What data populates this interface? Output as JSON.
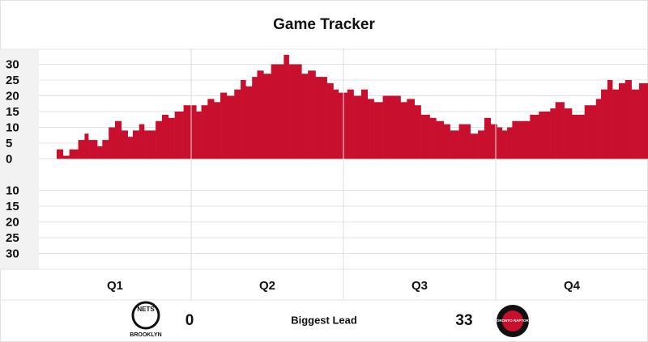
{
  "chart_data": {
    "type": "step",
    "title": "Game Tracker",
    "x": [
      1.4,
      1.9,
      2.4,
      3.1,
      3.6,
      3.9,
      4.6,
      5.0,
      5.5,
      6.0,
      6.5,
      7.0,
      7.4,
      7.9,
      8.3,
      9.2,
      9.7,
      10.2,
      10.7,
      11.4,
      12.4,
      12.8,
      13.3,
      13.8,
      14.3,
      14.8,
      15.4,
      15.9,
      16.3,
      16.8,
      17.2,
      17.7,
      18.3,
      19.3,
      19.7,
      20.7,
      21.2,
      21.8,
      22.7,
      23.2,
      23.6,
      24.3,
      24.8,
      25.4,
      25.9,
      26.4,
      27.1,
      28.5,
      29.0,
      29.6,
      30.1,
      30.8,
      31.3,
      31.9,
      32.4,
      33.1,
      34.0,
      34.6,
      35.1,
      35.6,
      36.1,
      36.5,
      36.9,
      37.3,
      38.7,
      39.4,
      40.3,
      40.7,
      41.4,
      42.0,
      43.0,
      43.9,
      44.3,
      44.8,
      45.2,
      45.7,
      46.2,
      46.7,
      47.3
    ],
    "values": [
      3,
      1,
      3,
      6,
      8,
      6,
      4,
      6,
      10,
      12,
      9,
      7,
      9,
      11,
      9,
      12,
      14,
      13,
      15,
      17,
      15,
      17,
      19,
      18,
      21,
      20,
      22,
      25,
      23,
      26,
      28,
      27,
      30,
      33,
      30,
      27,
      28,
      26,
      24,
      22,
      21,
      22,
      20,
      22,
      19,
      18,
      20,
      18,
      19,
      17,
      14,
      13,
      12,
      11,
      9,
      11,
      8,
      9,
      13,
      11,
      10,
      9,
      10,
      12,
      14,
      15,
      16,
      18,
      16,
      14,
      17,
      19,
      22,
      25,
      22,
      24,
      25,
      22,
      24
    ],
    "color": "#c8102e",
    "xlim": [
      0,
      48
    ],
    "ylim": [
      -35,
      35
    ],
    "yticks": [
      30,
      25,
      20,
      15,
      10,
      5,
      0,
      {
        "value": -10,
        "label": "10"
      },
      {
        "value": -15,
        "label": "15"
      },
      {
        "value": -20,
        "label": "20"
      },
      {
        "value": -25,
        "label": "25"
      },
      {
        "value": -30,
        "label": "30"
      }
    ],
    "grid": true,
    "quarters": [
      "Q1",
      "Q2",
      "Q3",
      "Q4"
    ],
    "footer": {
      "label": "Biggest Lead",
      "home_lead": 0,
      "away_lead": 33,
      "home_logo": [
        "NETS",
        "BROOKLYN"
      ],
      "away_logo": "TORONTO RAPTORS"
    }
  }
}
